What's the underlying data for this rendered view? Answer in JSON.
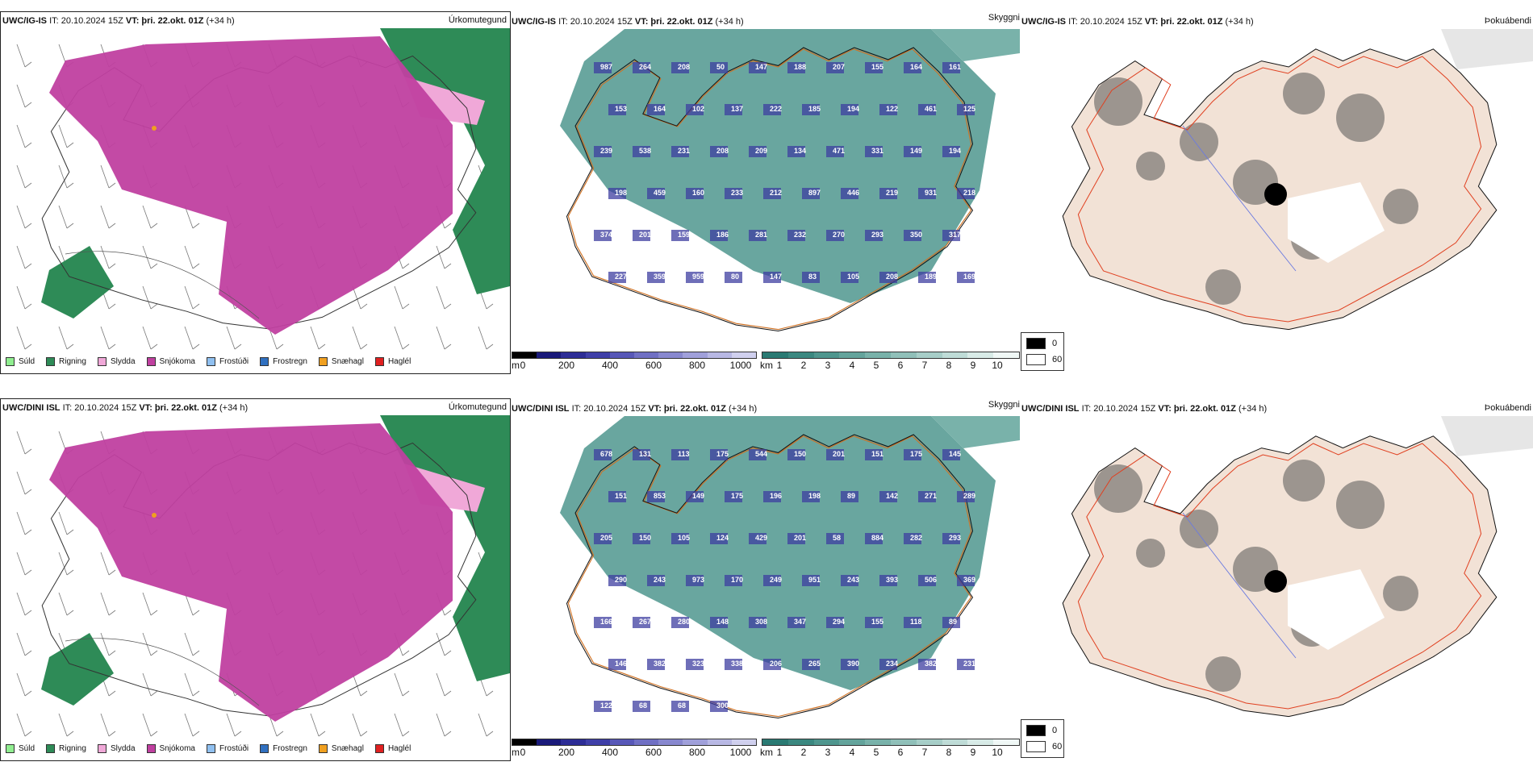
{
  "rows": [
    {
      "model": "UWC/IG-IS",
      "it": "IT: 20.10.2024 15Z",
      "vt_label": "VT:",
      "vt": "þri. 22.okt. 01Z",
      "lead": "(+34 h)",
      "elevations": [
        "987",
        "264",
        "208",
        "50",
        "147",
        "188",
        "207",
        "155",
        "164",
        "161",
        "153",
        "164",
        "102",
        "137",
        "222",
        "185",
        "194",
        "122",
        "461",
        "125",
        "239",
        "538",
        "231",
        "208",
        "209",
        "134",
        "471",
        "331",
        "149",
        "194",
        "198",
        "459",
        "160",
        "233",
        "212",
        "897",
        "446",
        "219",
        "931",
        "218",
        "374",
        "201",
        "159",
        "186",
        "281",
        "232",
        "270",
        "293",
        "350",
        "317",
        "227",
        "359",
        "959",
        "80",
        "147",
        "83",
        "105",
        "208",
        "189",
        "169"
      ]
    },
    {
      "model": "UWC/DINI ISL",
      "it": "IT: 20.10.2024 15Z",
      "vt_label": "VT:",
      "vt": "þri. 22.okt. 01Z",
      "lead": "(+34 h)",
      "elevations": [
        "678",
        "131",
        "113",
        "175",
        "544",
        "150",
        "201",
        "151",
        "175",
        "145",
        "151",
        "853",
        "149",
        "175",
        "196",
        "198",
        "89",
        "142",
        "271",
        "289",
        "205",
        "150",
        "105",
        "124",
        "429",
        "201",
        "58",
        "884",
        "282",
        "293",
        "290",
        "243",
        "973",
        "170",
        "249",
        "951",
        "243",
        "393",
        "506",
        "369",
        "166",
        "267",
        "280",
        "148",
        "308",
        "347",
        "294",
        "155",
        "118",
        "89",
        "146",
        "382",
        "323",
        "338",
        "206",
        "265",
        "390",
        "234",
        "382",
        "231",
        "122",
        "68",
        "68",
        "300"
      ]
    }
  ],
  "precip_panel": {
    "title": "Úrkomutegund",
    "legend": [
      {
        "label": "Súld",
        "color": "#90ee90"
      },
      {
        "label": "Rigning",
        "color": "#2e8b57"
      },
      {
        "label": "Slydda",
        "color": "#f0a8d8"
      },
      {
        "label": "Snjókoma",
        "color": "#c040a0"
      },
      {
        "label": "Frostúði",
        "color": "#90c0f0"
      },
      {
        "label": "Frostregn",
        "color": "#3070c0"
      },
      {
        "label": "Snæhagl",
        "color": "#f0a020"
      },
      {
        "label": "Haglél",
        "color": "#e02020"
      }
    ]
  },
  "cloud_panel": {
    "title": "Skyggni",
    "height_unit": "m",
    "height_ticks": [
      "0",
      "200",
      "400",
      "600",
      "800",
      "1000"
    ],
    "height_colors": [
      "#000000",
      "#1a1a7a",
      "#2d2d96",
      "#3f3fa8",
      "#5858b8",
      "#7070c4",
      "#8888cf",
      "#a0a0da",
      "#b8b8e4",
      "#d0d0ee"
    ],
    "vis_unit": "km",
    "vis_ticks": [
      "1",
      "2",
      "3",
      "4",
      "5",
      "6",
      "7",
      "8",
      "9",
      "10"
    ],
    "vis_colors": [
      "#2a7a73",
      "#3b8880",
      "#4f968e",
      "#64a49c",
      "#79b2aa",
      "#90c0b9",
      "#a7cec8",
      "#bfdcd7",
      "#d8ebe7",
      "#f0f8f6"
    ]
  },
  "fog_panel": {
    "title": "Þokuábendi",
    "legend": [
      {
        "label": "0",
        "color": "#000000"
      },
      {
        "label": "60",
        "color": "#ffffff"
      }
    ]
  }
}
